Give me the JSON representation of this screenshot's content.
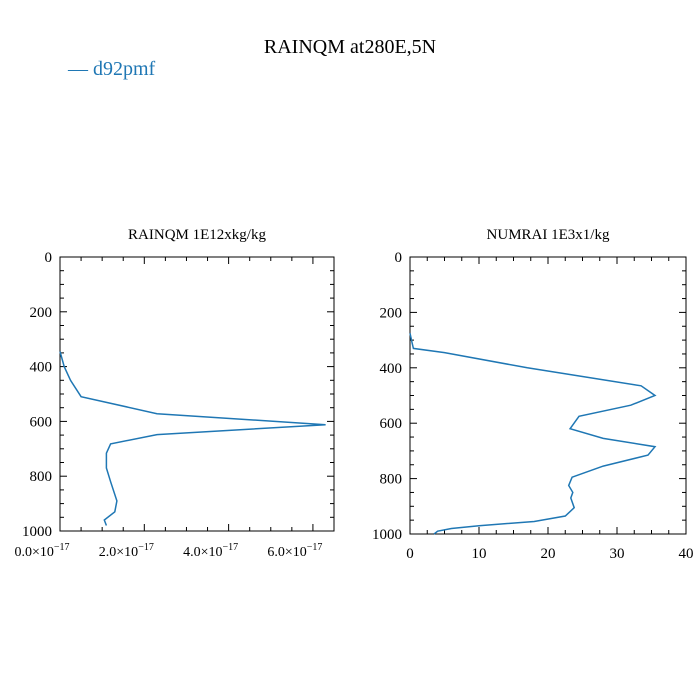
{
  "title": "RAINQM at280E,5N",
  "legend": {
    "entries": [
      {
        "label": "— d92pmf",
        "color": "#1f77b4"
      }
    ]
  },
  "chart_data": [
    {
      "type": "line",
      "title": "RAINQM  1E12xkg/kg",
      "xlim": [
        0,
        6.5e-17
      ],
      "ylim": [
        1000,
        0
      ],
      "xticks": [
        0,
        2e-17,
        4e-17,
        6e-17
      ],
      "xtick_mantissas": [
        "0.0",
        "2.0",
        "4.0",
        "6.0"
      ],
      "xtick_suffix": "×10",
      "xtick_exponent": "−17",
      "yticks": [
        0,
        200,
        400,
        600,
        800,
        1000
      ],
      "ytick_labels": [
        "0",
        "200",
        "400",
        "600",
        "800",
        "1000"
      ],
      "grid": false,
      "series": [
        {
          "color": "#1f77b4",
          "x": [
            0,
            1e-18,
            2.5e-18,
            5e-18,
            2.3e-17,
            6.3e-17,
            2.3e-17,
            1.2e-17,
            1.1e-17,
            1.1e-17,
            1.2e-17,
            1.35e-17,
            1.3e-17,
            1.05e-17,
            1.1e-17
          ],
          "y": [
            345,
            400,
            450,
            510,
            572,
            612,
            648,
            682,
            716,
            770,
            820,
            890,
            930,
            960,
            980
          ]
        }
      ]
    },
    {
      "type": "line",
      "title": "NUMRAI  1E3x1/kg",
      "xlim": [
        0,
        40
      ],
      "ylim": [
        1000,
        0
      ],
      "xticks": [
        0,
        10,
        20,
        30,
        40
      ],
      "xtick_labels": [
        "0",
        "10",
        "20",
        "30",
        "40"
      ],
      "yticks": [
        0,
        200,
        400,
        600,
        800,
        1000
      ],
      "ytick_labels": [
        "0",
        "200",
        "400",
        "600",
        "800",
        "1000"
      ],
      "grid": false,
      "series": [
        {
          "color": "#1f77b4",
          "x": [
            0,
            0.3,
            0.5,
            5,
            17,
            33.5,
            35.5,
            32,
            24.5,
            23.2,
            28,
            35.5,
            34.5,
            28,
            23.5,
            23,
            23.6,
            23.3,
            23.8,
            22.5,
            18,
            10,
            6,
            4,
            3.5
          ],
          "y": [
            275,
            310,
            330,
            345,
            400,
            465,
            500,
            535,
            575,
            620,
            655,
            685,
            715,
            755,
            795,
            825,
            850,
            870,
            905,
            935,
            955,
            970,
            980,
            990,
            1000
          ]
        }
      ]
    }
  ]
}
